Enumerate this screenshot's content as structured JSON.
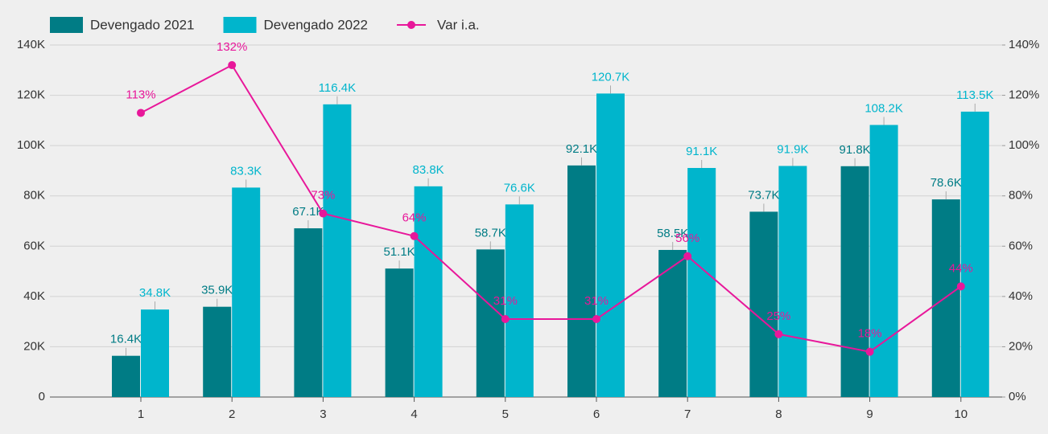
{
  "chart_data": {
    "type": "bar",
    "categories": [
      "1",
      "2",
      "3",
      "4",
      "5",
      "6",
      "7",
      "8",
      "9",
      "10"
    ],
    "series": [
      {
        "name": "Devengado 2021",
        "color": "#007c85",
        "values": [
          16400,
          35900,
          67100,
          51100,
          58700,
          92100,
          58500,
          73700,
          91800,
          78600
        ],
        "value_labels": [
          "16.4K",
          "35.9K",
          "67.1K",
          "51.1K",
          "58.7K",
          "92.1K",
          "58.5K",
          "73.7K",
          "91.8K",
          "78.6K"
        ]
      },
      {
        "name": "Devengado 2022",
        "color": "#00b5cc",
        "values": [
          34800,
          83300,
          116400,
          83800,
          76600,
          120700,
          91100,
          91900,
          108200,
          113500
        ],
        "value_labels": [
          "34.8K",
          "83.3K",
          "116.4K",
          "83.8K",
          "76.6K",
          "120.7K",
          "91.1K",
          "91.9K",
          "108.2K",
          "113.5K"
        ]
      },
      {
        "name": "Var i.a.",
        "color": "#e8179a",
        "type": "line",
        "axis": "y2",
        "values": [
          113,
          132,
          73,
          64,
          31,
          31,
          56,
          25,
          18,
          44
        ],
        "value_labels": [
          "113%",
          "132%",
          "73%",
          "64%",
          "31%",
          "31%",
          "56%",
          "25%",
          "18%",
          "44%"
        ]
      }
    ],
    "ylim": [
      0,
      140000
    ],
    "yticks": [
      0,
      {
        "value": 20000,
        "label": "20K"
      },
      {
        "value": 40000,
        "label": "40K"
      },
      {
        "value": 60000,
        "label": "60K"
      },
      {
        "value": 80000,
        "label": "80K"
      },
      {
        "value": 100000,
        "label": "100K"
      },
      {
        "value": 120000,
        "label": "120K"
      },
      {
        "value": 140000,
        "label": "140K"
      }
    ],
    "y2lim": [
      0,
      140
    ],
    "y2ticks": [
      {
        "value": 0,
        "label": "0%"
      },
      {
        "value": 20,
        "label": "20%"
      },
      {
        "value": 40,
        "label": "40%"
      },
      {
        "value": 60,
        "label": "60%"
      },
      {
        "value": 80,
        "label": "80%"
      },
      {
        "value": 100,
        "label": "100%"
      },
      {
        "value": 120,
        "label": "120%"
      },
      {
        "value": 140,
        "label": "140%"
      }
    ],
    "grid": true,
    "legend": "top"
  }
}
